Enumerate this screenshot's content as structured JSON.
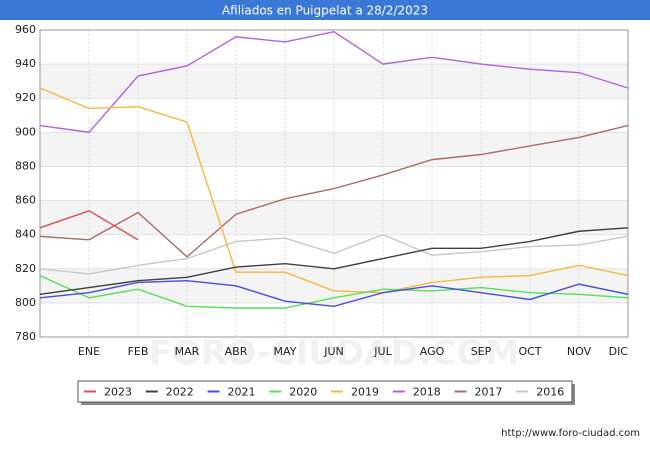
{
  "chart_data": {
    "type": "line",
    "title": "Afiliados en Puigpelat a 28/2/2023",
    "watermark": "FORO-CIUDAD.COM",
    "footer": "http://www.foro-ciudad.com",
    "categories": [
      null,
      "ENE",
      "FEB",
      "MAR",
      "ABR",
      "MAY",
      "JUN",
      "JUL",
      "AGO",
      "SEP",
      "OCT",
      "NOV",
      "DIC"
    ],
    "ylim": [
      780,
      960
    ],
    "yticks": [
      780,
      800,
      820,
      840,
      860,
      880,
      900,
      920,
      940,
      960
    ],
    "grid": true,
    "legend": "bottom",
    "series": [
      {
        "name": "2023",
        "color": "#e05050",
        "values": [
          844,
          854,
          837,
          null,
          null,
          null,
          null,
          null,
          null,
          null,
          null,
          null,
          null
        ]
      },
      {
        "name": "2022",
        "color": "#404040",
        "values": [
          805,
          809,
          813,
          815,
          821,
          823,
          820,
          826,
          832,
          832,
          836,
          842,
          844
        ]
      },
      {
        "name": "2021",
        "color": "#4a4ae0",
        "values": [
          803,
          806,
          812,
          813,
          810,
          801,
          798,
          806,
          810,
          806,
          802,
          811,
          805
        ]
      },
      {
        "name": "2020",
        "color": "#55e055",
        "values": [
          816,
          803,
          808,
          798,
          797,
          797,
          803,
          808,
          807,
          809,
          806,
          805,
          803
        ]
      },
      {
        "name": "2019",
        "color": "#f5b840",
        "values": [
          926,
          914,
          915,
          906,
          818,
          818,
          807,
          806,
          812,
          815,
          816,
          822,
          816
        ]
      },
      {
        "name": "2018",
        "color": "#b060e8",
        "values": [
          904,
          900,
          933,
          939,
          956,
          953,
          959,
          940,
          944,
          940,
          937,
          935,
          926
        ]
      },
      {
        "name": "2017",
        "color": "#b06868",
        "values": [
          839,
          837,
          853,
          827,
          852,
          861,
          867,
          875,
          884,
          887,
          892,
          897,
          904
        ]
      },
      {
        "name": "2016",
        "color": "#c8c8c8",
        "values": [
          820,
          817,
          822,
          826,
          836,
          838,
          829,
          840,
          828,
          830,
          833,
          834,
          839
        ]
      }
    ]
  }
}
